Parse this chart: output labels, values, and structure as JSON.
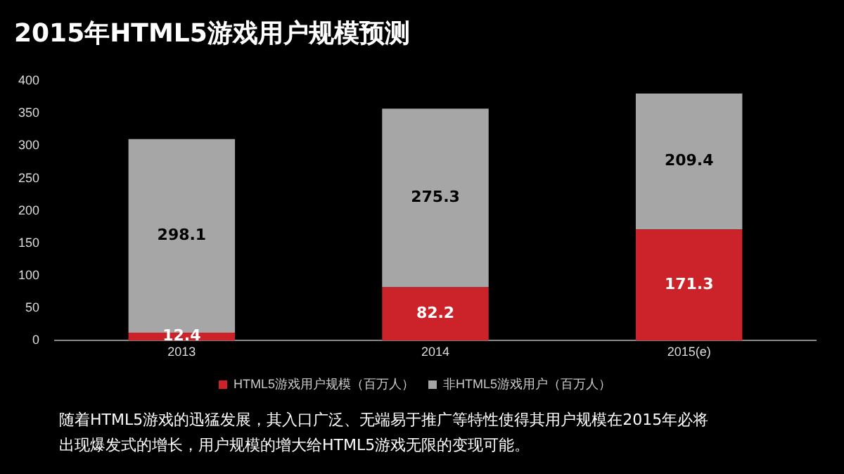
{
  "chart_data": {
    "type": "bar",
    "title": "2015年HTML5游戏用户规模预测",
    "categories": [
      "2013",
      "2014",
      "2015(e)"
    ],
    "stacked": true,
    "series": [
      {
        "name": "HTML5游戏用户规模（百万人）",
        "color": "#cc2229",
        "values": [
          12.4,
          82.2,
          171.3
        ]
      },
      {
        "name": "非HTML5游戏用户（百万人）",
        "color": "#a6a6a6",
        "values": [
          298.1,
          275.3,
          209.4
        ]
      }
    ],
    "ylim": [
      0,
      400
    ],
    "yticks": [
      0,
      50,
      100,
      150,
      200,
      250,
      300,
      350,
      400
    ],
    "grid": false,
    "legend": "bottom",
    "data_labels": true,
    "annotations": [
      "随着HTML5游戏的迅猛发展，其入口广泛、无端易于推广等特性使得其用户规模在2015年必将出现爆发式的增长，用户规模的增大给HTML5游戏无限的变现可能。"
    ]
  }
}
